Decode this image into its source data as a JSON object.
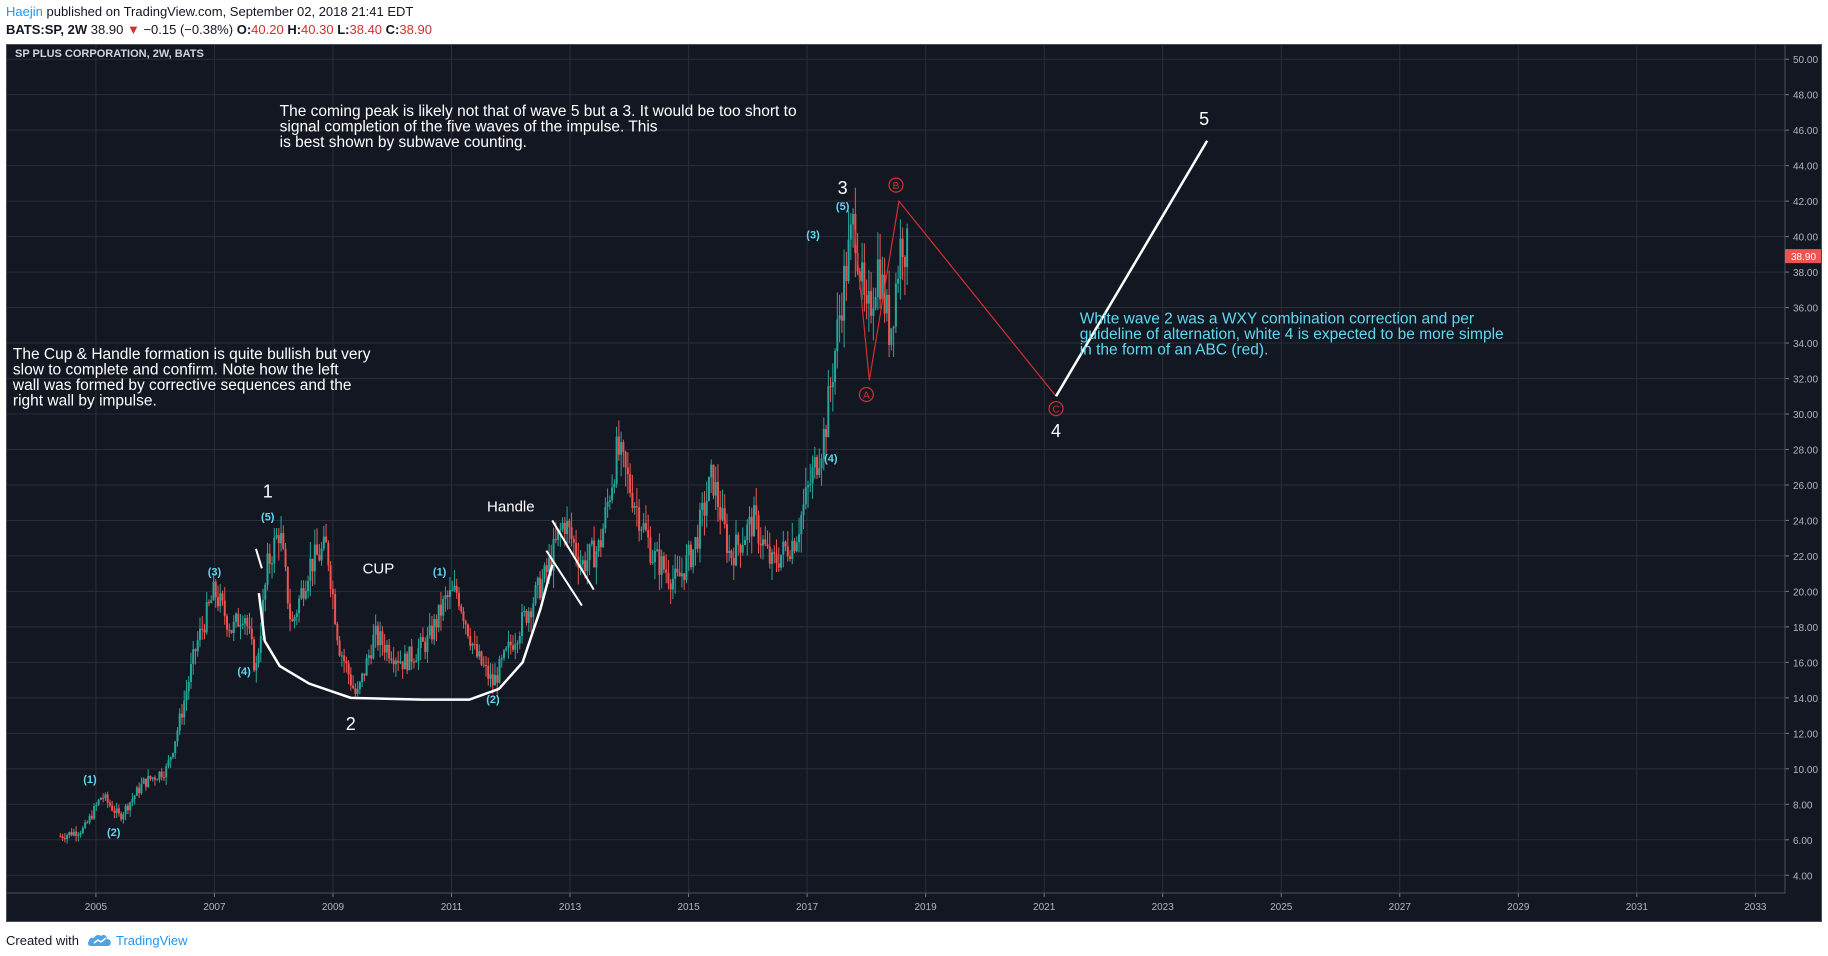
{
  "header": {
    "author": "Haejin",
    "published_text": "published on TradingView.com, September 02, 2018 21:41 EDT",
    "symbol_line": "BATS:SP, 2W",
    "last_price": "38.90",
    "down_arrow": "▼",
    "change": "−0.15 (−0.38%)",
    "open_label": "O:",
    "open_value": "40.20",
    "high_label": "H:",
    "high_value": "40.30",
    "low_label": "L:",
    "low_value": "38.40",
    "close_label": "C:",
    "close_value": "38.90"
  },
  "footer": {
    "created_with": "Created with",
    "brand": "TradingView"
  },
  "colors": {
    "background": "#131722",
    "grid": "#2a2e39",
    "up_candle": "#26a69a",
    "down_candle": "#ef5350",
    "white_wave": "#ffffff",
    "subwave": "#5ed8f0",
    "red_abc": "#d32f2f",
    "price_tag": "#ef5350"
  },
  "chart_data": {
    "type": "candlestick",
    "title": "SP PLUS CORPORATION, 2W, BATS",
    "x_range": [
      2003.5,
      2033.5
    ],
    "y_range": [
      3.0,
      50.8
    ],
    "y_ticks": [
      "4.00",
      "6.00",
      "8.00",
      "10.00",
      "12.00",
      "14.00",
      "16.00",
      "18.00",
      "20.00",
      "22.00",
      "24.00",
      "26.00",
      "28.00",
      "30.00",
      "32.00",
      "34.00",
      "36.00",
      "38.00",
      "40.00",
      "42.00",
      "44.00",
      "46.00",
      "48.00",
      "50.00"
    ],
    "x_ticks": [
      "2005",
      "2007",
      "2009",
      "2011",
      "2013",
      "2015",
      "2017",
      "2019",
      "2021",
      "2023",
      "2025",
      "2027",
      "2029",
      "2031",
      "2033"
    ],
    "last_price_tag": "38.90",
    "last_price_value": 38.9,
    "grid": true,
    "price_path": [
      [
        2004.4,
        6.2
      ],
      [
        2004.8,
        6.6
      ],
      [
        2005.1,
        8.5
      ],
      [
        2005.4,
        7.3
      ],
      [
        2005.8,
        9.2
      ],
      [
        2006.2,
        10.0
      ],
      [
        2006.4,
        12.5
      ],
      [
        2006.7,
        17.0
      ],
      [
        2007.0,
        20.0
      ],
      [
        2007.3,
        17.8
      ],
      [
        2007.5,
        19.0
      ],
      [
        2007.7,
        15.5
      ],
      [
        2007.9,
        21.5
      ],
      [
        2008.1,
        23.5
      ],
      [
        2008.3,
        18.0
      ],
      [
        2008.6,
        21.5
      ],
      [
        2008.9,
        22.5
      ],
      [
        2009.1,
        17.0
      ],
      [
        2009.4,
        14.0
      ],
      [
        2009.7,
        17.5
      ],
      [
        2010.2,
        16.0
      ],
      [
        2010.6,
        17.2
      ],
      [
        2010.9,
        19.5
      ],
      [
        2011.1,
        20.0
      ],
      [
        2011.4,
        16.5
      ],
      [
        2011.7,
        14.8
      ],
      [
        2012.0,
        17.0
      ],
      [
        2012.3,
        19.0
      ],
      [
        2012.6,
        21.0
      ],
      [
        2012.9,
        24.0
      ],
      [
        2013.2,
        21.5
      ],
      [
        2013.5,
        22.5
      ],
      [
        2013.8,
        28.0
      ],
      [
        2014.1,
        25.0
      ],
      [
        2014.4,
        22.0
      ],
      [
        2014.8,
        20.5
      ],
      [
        2015.1,
        22.5
      ],
      [
        2015.4,
        26.5
      ],
      [
        2015.7,
        22.0
      ],
      [
        2016.1,
        24.0
      ],
      [
        2016.4,
        21.5
      ],
      [
        2016.8,
        23.0
      ],
      [
        2017.0,
        25.5
      ],
      [
        2017.3,
        29.0
      ],
      [
        2017.6,
        37.0
      ],
      [
        2017.8,
        41.0
      ],
      [
        2018.0,
        35.0
      ],
      [
        2018.2,
        38.5
      ],
      [
        2018.4,
        34.5
      ],
      [
        2018.6,
        40.2
      ],
      [
        2018.7,
        38.9
      ]
    ],
    "white_waves": [
      {
        "label": "1",
        "x": 2007.9,
        "y": 25.3
      },
      {
        "label": "2",
        "x": 2009.3,
        "y": 12.2
      },
      {
        "label": "3",
        "x": 2017.6,
        "y": 42.4
      },
      {
        "label": "4",
        "x": 2021.2,
        "y": 28.7
      },
      {
        "label": "5",
        "x": 2023.7,
        "y": 46.3
      }
    ],
    "subwaves": [
      {
        "label": "(1)",
        "x": 2004.9,
        "y": 9.2
      },
      {
        "label": "(2)",
        "x": 2005.3,
        "y": 6.2
      },
      {
        "label": "(3)",
        "x": 2007.0,
        "y": 20.9
      },
      {
        "label": "(4)",
        "x": 2007.5,
        "y": 15.3
      },
      {
        "label": "(5)",
        "x": 2007.9,
        "y": 24.0
      },
      {
        "label": "(1)",
        "x": 2010.8,
        "y": 20.9
      },
      {
        "label": "(2)",
        "x": 2011.7,
        "y": 13.7
      },
      {
        "label": "(3)",
        "x": 2017.1,
        "y": 39.9
      },
      {
        "label": "(4)",
        "x": 2017.4,
        "y": 27.3
      },
      {
        "label": "(5)",
        "x": 2017.6,
        "y": 41.5
      }
    ],
    "red_abc": [
      {
        "label": "A",
        "x": 2018.0,
        "y": 31.1
      },
      {
        "label": "B",
        "x": 2018.5,
        "y": 42.9
      },
      {
        "label": "C",
        "x": 2021.2,
        "y": 30.3
      }
    ],
    "text_labels": [
      {
        "text": "CUP",
        "x": 2009.5,
        "y": 21.0
      },
      {
        "text": "Handle",
        "x": 2011.6,
        "y": 24.5
      }
    ],
    "annotations": [
      {
        "lines": [
          "The coming peak is likely not that of wave 5 but a 3. It would be too short to",
          "signal completion of the five waves of the impulse. This",
          "is best shown by subwave counting."
        ],
        "x": 2008.1,
        "y": 46.8,
        "color": "#ffffff"
      },
      {
        "lines": [
          "The Cup & Handle formation is quite bullish but very",
          "slow to complete and confirm. Note how the left",
          "wall was formed by corrective sequences and the",
          "right wall by impulse."
        ],
        "x": 2003.6,
        "y": 33.1,
        "color": "#ffffff"
      },
      {
        "lines": [
          "White wave 2 was a WXY combination correction and per",
          "guideline of alternation, white 4 is expected to be more simple",
          "in the form of an ABC (red)."
        ],
        "x": 2021.6,
        "y": 35.1,
        "color": "#5ed8f0"
      }
    ]
  }
}
